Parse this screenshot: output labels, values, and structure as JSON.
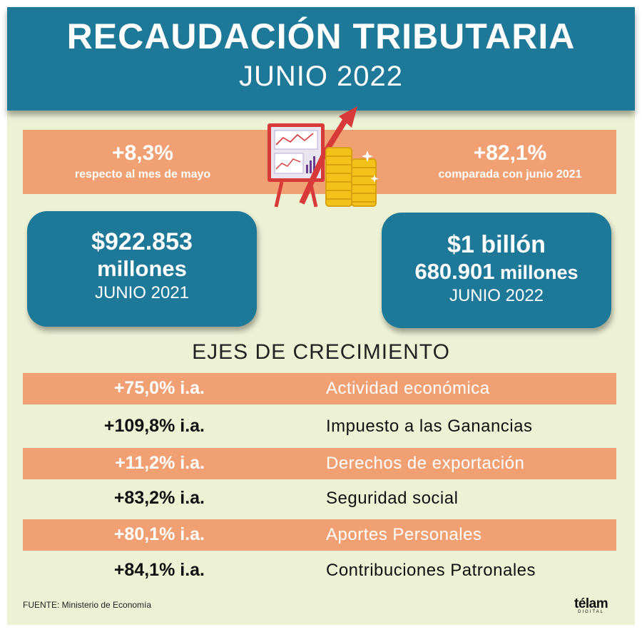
{
  "header": {
    "title": "RECAUDACIÓN TRIBUTARIA",
    "subtitle": "JUNIO 2022"
  },
  "stats": {
    "left": {
      "value": "+8,3%",
      "caption": "respecto al mes de mayo"
    },
    "right": {
      "value": "+82,1%",
      "caption": "comparada con junio 2021"
    }
  },
  "illustration": {
    "icons": [
      "chart-board-icon",
      "arrow-up-icon",
      "coin-stack-icon"
    ],
    "colors": {
      "arrow": "#d83a3a",
      "coins": "#f2c21b",
      "board": "#e8e4f0"
    }
  },
  "cards": {
    "left": {
      "line1": "$922.853",
      "line2": "millones",
      "line3": "JUNIO 2021"
    },
    "right": {
      "line1": "$1 billón",
      "line2a": "680.901",
      "line2b": " millones",
      "line3": "JUNIO 2022"
    }
  },
  "section_title": "EJES DE CRECIMIENTO",
  "rows": [
    {
      "pct": "+75,0% i.a.",
      "label": "Actividad económica"
    },
    {
      "pct": "+109,8% i.a.",
      "label": "Impuesto a las Ganancias"
    },
    {
      "pct": "+11,2% i.a.",
      "label": "Derechos de exportación"
    },
    {
      "pct": "+83,2% i.a.",
      "label": "Seguridad social"
    },
    {
      "pct": "+80,1% i.a.",
      "label": "Aportes Personales"
    },
    {
      "pct": "+84,1% i.a.",
      "label": "Contribuciones Patronales"
    }
  ],
  "footer": {
    "source": "FUENTE: Ministerio de Economía",
    "logo": "télam",
    "logo_sub": "DIGITAL"
  },
  "colors": {
    "primary": "#1e7898",
    "accent": "#f0a072",
    "background": "#eef2d5"
  }
}
